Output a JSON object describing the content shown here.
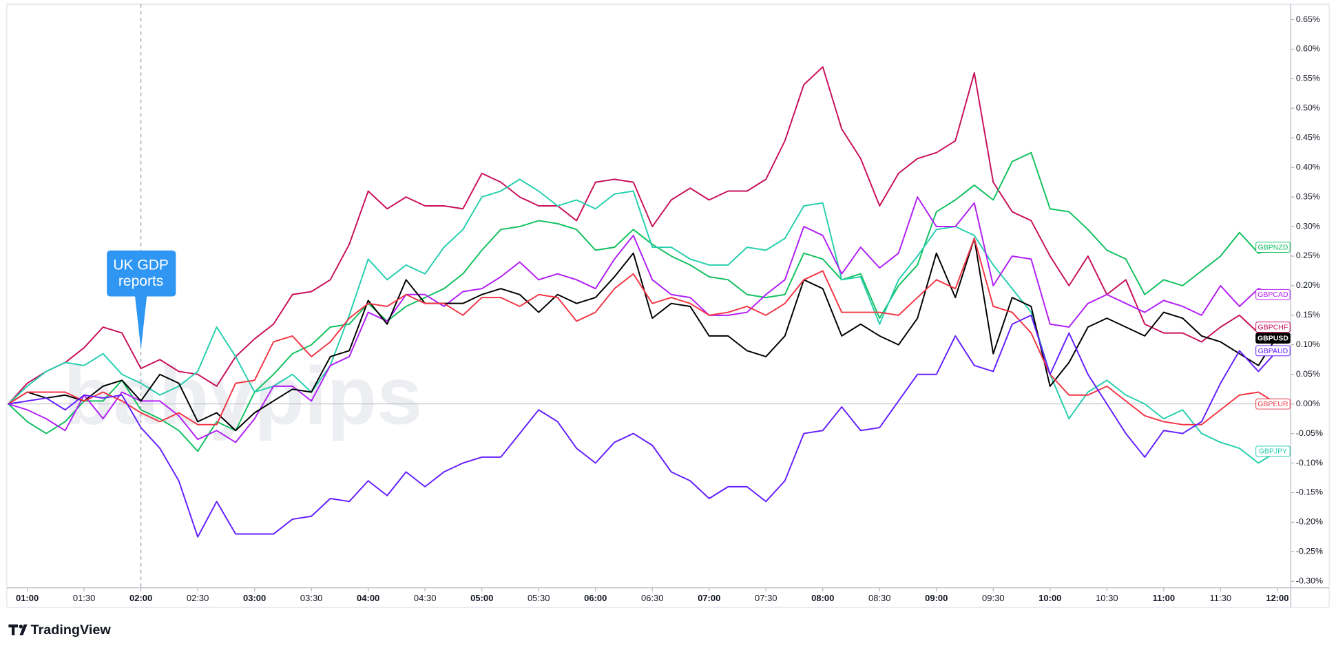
{
  "chart_data": {
    "type": "line",
    "x": [
      "00:50",
      "01:00",
      "01:10",
      "01:20",
      "01:30",
      "01:40",
      "01:50",
      "02:00",
      "02:10",
      "02:20",
      "02:30",
      "02:40",
      "02:50",
      "03:00",
      "03:10",
      "03:20",
      "03:30",
      "03:40",
      "03:50",
      "04:00",
      "04:10",
      "04:20",
      "04:30",
      "04:40",
      "04:50",
      "05:00",
      "05:10",
      "05:20",
      "05:30",
      "05:40",
      "05:50",
      "06:00",
      "06:10",
      "06:20",
      "06:30",
      "06:40",
      "06:50",
      "07:00",
      "07:10",
      "07:20",
      "07:30",
      "07:40",
      "07:50",
      "08:00",
      "08:10",
      "08:20",
      "08:30",
      "08:40",
      "08:50",
      "09:00",
      "09:10",
      "09:20",
      "09:30",
      "09:40",
      "09:50",
      "10:00",
      "10:10",
      "10:20",
      "10:30",
      "10:40",
      "10:50",
      "11:00",
      "11:10",
      "11:20",
      "11:30",
      "11:40",
      "11:50",
      "12:00"
    ],
    "xticks": [
      "01:00",
      "01:30",
      "02:00",
      "02:30",
      "03:00",
      "03:30",
      "04:00",
      "04:30",
      "05:00",
      "05:30",
      "06:00",
      "06:30",
      "07:00",
      "07:30",
      "08:00",
      "08:30",
      "09:00",
      "09:30",
      "10:00",
      "10:30",
      "11:00",
      "11:30",
      "12:00"
    ],
    "ylim": [
      -0.311,
      0.676
    ],
    "yticks": [
      {
        "value": -0.3,
        "label": "-0.30%"
      },
      {
        "value": -0.25,
        "label": "-0.25%"
      },
      {
        "value": -0.2,
        "label": "-0.20%"
      },
      {
        "value": -0.15,
        "label": "-0.15%"
      },
      {
        "value": -0.1,
        "label": "-0.10%"
      },
      {
        "value": -0.05,
        "label": "-0.05%"
      },
      {
        "value": 0,
        "label": "0.00%"
      },
      {
        "value": 0.05,
        "label": "0.05%"
      },
      {
        "value": 0.1,
        "label": "0.10%"
      },
      {
        "value": 0.15,
        "label": "0.15%"
      },
      {
        "value": 0.2,
        "label": "0.20%"
      },
      {
        "value": 0.25,
        "label": "0.25%"
      },
      {
        "value": 0.3,
        "label": "0.30%"
      },
      {
        "value": 0.35,
        "label": "0.35%"
      },
      {
        "value": 0.4,
        "label": "0.40%"
      },
      {
        "value": 0.45,
        "label": "0.45%"
      },
      {
        "value": 0.5,
        "label": "0.50%"
      },
      {
        "value": 0.55,
        "label": "0.55%"
      },
      {
        "value": 0.6,
        "label": "0.60%"
      },
      {
        "value": 0.65,
        "label": "0.65%"
      }
    ],
    "zero_line": true,
    "annotation": {
      "x": "02:00",
      "lines": [
        "UK GDP",
        "reports"
      ]
    },
    "watermark": "babypips",
    "brand": "TradingView",
    "series": [
      {
        "name": "GBPCHF",
        "color": "#c8105a",
        "values": [
          0,
          0.035,
          0.055,
          0.07,
          0.095,
          0.13,
          0.12,
          0.06,
          0.075,
          0.055,
          0.05,
          0.03,
          0.08,
          0.11,
          0.135,
          0.185,
          0.19,
          0.21,
          0.27,
          0.36,
          0.33,
          0.35,
          0.335,
          0.335,
          0.33,
          0.39,
          0.375,
          0.35,
          0.335,
          0.335,
          0.31,
          0.375,
          0.38,
          0.375,
          0.3,
          0.345,
          0.365,
          0.345,
          0.36,
          0.36,
          0.38,
          0.445,
          0.54,
          0.57,
          0.465,
          0.415,
          0.335,
          0.39,
          0.415,
          0.425,
          0.445,
          0.56,
          0.375,
          0.325,
          0.31,
          0.25,
          0.2,
          0.25,
          0.185,
          0.21,
          0.135,
          0.12,
          0.12,
          0.105,
          0.13,
          0.15,
          0.12,
          0.13
        ]
      },
      {
        "name": "GBPNZD",
        "color": "#12c05f",
        "values": [
          0,
          -0.03,
          -0.05,
          -0.03,
          0.005,
          0.005,
          0.04,
          -0.01,
          -0.025,
          -0.045,
          -0.08,
          -0.03,
          -0.045,
          0.02,
          0.05,
          0.085,
          0.1,
          0.13,
          0.135,
          0.17,
          0.14,
          0.165,
          0.18,
          0.195,
          0.22,
          0.26,
          0.295,
          0.3,
          0.31,
          0.305,
          0.295,
          0.26,
          0.265,
          0.295,
          0.27,
          0.25,
          0.235,
          0.215,
          0.21,
          0.185,
          0.18,
          0.185,
          0.255,
          0.245,
          0.21,
          0.22,
          0.145,
          0.2,
          0.235,
          0.325,
          0.345,
          0.37,
          0.345,
          0.41,
          0.425,
          0.33,
          0.325,
          0.295,
          0.26,
          0.245,
          0.185,
          0.21,
          0.2,
          0.225,
          0.25,
          0.29,
          0.255,
          0.265
        ]
      },
      {
        "name": "GBPJPY",
        "color": "#26cfae",
        "values": [
          0,
          0.03,
          0.055,
          0.07,
          0.065,
          0.085,
          0.05,
          0.035,
          0.015,
          0.03,
          0.055,
          0.13,
          0.08,
          0.02,
          0.03,
          0.05,
          0.02,
          0.065,
          0.15,
          0.245,
          0.21,
          0.235,
          0.22,
          0.265,
          0.295,
          0.35,
          0.36,
          0.38,
          0.36,
          0.335,
          0.345,
          0.33,
          0.355,
          0.36,
          0.265,
          0.265,
          0.245,
          0.235,
          0.235,
          0.265,
          0.26,
          0.28,
          0.335,
          0.34,
          0.21,
          0.215,
          0.135,
          0.21,
          0.25,
          0.295,
          0.3,
          0.285,
          0.235,
          0.195,
          0.155,
          0.05,
          -0.025,
          0.02,
          0.04,
          0.015,
          0,
          -0.025,
          -0.01,
          -0.05,
          -0.065,
          -0.075,
          -0.1,
          -0.08
        ]
      },
      {
        "name": "GBPCAD",
        "color": "#b21ff5",
        "values": [
          0,
          -0.01,
          -0.025,
          -0.045,
          0.015,
          -0.025,
          0.02,
          0.005,
          0.005,
          -0.02,
          -0.06,
          -0.045,
          -0.065,
          -0.025,
          0.03,
          0.03,
          0.005,
          0.065,
          0.08,
          0.155,
          0.14,
          0.185,
          0.185,
          0.165,
          0.19,
          0.195,
          0.215,
          0.24,
          0.21,
          0.22,
          0.21,
          0.195,
          0.245,
          0.285,
          0.21,
          0.185,
          0.18,
          0.15,
          0.15,
          0.155,
          0.185,
          0.21,
          0.3,
          0.285,
          0.22,
          0.265,
          0.23,
          0.255,
          0.35,
          0.3,
          0.3,
          0.34,
          0.2,
          0.25,
          0.245,
          0.135,
          0.13,
          0.17,
          0.185,
          0.17,
          0.155,
          0.175,
          0.165,
          0.15,
          0.2,
          0.165,
          0.195,
          0.185
        ]
      },
      {
        "name": "GBPUSD",
        "color": "#000000",
        "values": [
          0,
          0.02,
          0.01,
          0.015,
          0.005,
          0.03,
          0.04,
          0.005,
          0.05,
          0.035,
          -0.03,
          -0.015,
          -0.045,
          -0.015,
          0.005,
          0.025,
          0.02,
          0.08,
          0.09,
          0.175,
          0.135,
          0.21,
          0.17,
          0.17,
          0.17,
          0.185,
          0.195,
          0.185,
          0.155,
          0.185,
          0.17,
          0.18,
          0.215,
          0.255,
          0.145,
          0.17,
          0.165,
          0.115,
          0.115,
          0.09,
          0.08,
          0.115,
          0.21,
          0.195,
          0.115,
          0.135,
          0.115,
          0.1,
          0.145,
          0.255,
          0.18,
          0.28,
          0.085,
          0.18,
          0.165,
          0.03,
          0.07,
          0.13,
          0.145,
          0.13,
          0.115,
          0.155,
          0.145,
          0.115,
          0.105,
          0.085,
          0.065,
          0.115
        ]
      },
      {
        "name": "GBPEUR",
        "color": "#f23645",
        "values": [
          0,
          0.02,
          0.02,
          0.02,
          0.005,
          0.02,
          0.005,
          -0.015,
          -0.03,
          -0.015,
          -0.035,
          -0.035,
          0.035,
          0.04,
          0.105,
          0.115,
          0.08,
          0.105,
          0.145,
          0.17,
          0.165,
          0.185,
          0.17,
          0.17,
          0.15,
          0.18,
          0.18,
          0.165,
          0.185,
          0.18,
          0.14,
          0.155,
          0.195,
          0.22,
          0.17,
          0.18,
          0.17,
          0.15,
          0.155,
          0.165,
          0.15,
          0.17,
          0.21,
          0.225,
          0.155,
          0.155,
          0.155,
          0.15,
          0.18,
          0.21,
          0.195,
          0.28,
          0.165,
          0.155,
          0.12,
          0.05,
          0.015,
          0.015,
          0.03,
          0.005,
          -0.02,
          -0.03,
          -0.035,
          -0.035,
          -0.01,
          0.015,
          0.02,
          0
        ]
      },
      {
        "name": "GBPAUD",
        "color": "#651fff",
        "values": [
          0,
          0.005,
          0.01,
          -0.01,
          0.015,
          0.01,
          0.015,
          -0.04,
          -0.075,
          -0.13,
          -0.225,
          -0.165,
          -0.22,
          -0.22,
          -0.22,
          -0.195,
          -0.19,
          -0.16,
          -0.165,
          -0.13,
          -0.155,
          -0.115,
          -0.14,
          -0.115,
          -0.1,
          -0.09,
          -0.09,
          -0.05,
          -0.01,
          -0.03,
          -0.075,
          -0.1,
          -0.065,
          -0.05,
          -0.07,
          -0.115,
          -0.13,
          -0.16,
          -0.14,
          -0.14,
          -0.165,
          -0.13,
          -0.05,
          -0.045,
          -0.005,
          -0.045,
          -0.04,
          0.005,
          0.05,
          0.05,
          0.115,
          0.065,
          0.055,
          0.135,
          0.15,
          0.05,
          0.12,
          0.05,
          0,
          -0.05,
          -0.09,
          -0.045,
          -0.05,
          -0.03,
          0.035,
          0.09,
          0.055,
          0.09
        ]
      }
    ]
  }
}
